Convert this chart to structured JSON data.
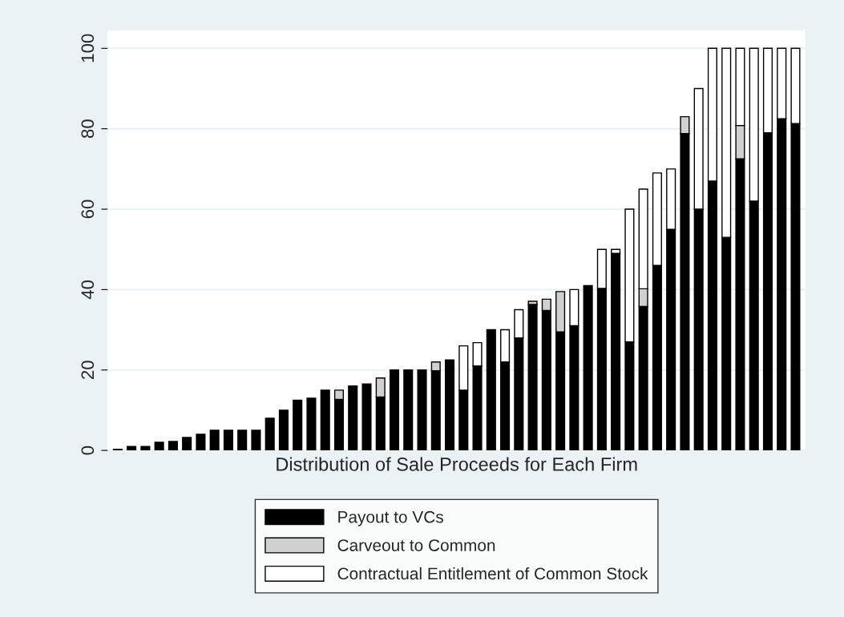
{
  "chart_data": {
    "type": "bar",
    "stacked": true,
    "xlabel": "Distribution of Sale Proceeds for Each Firm",
    "categories": [
      null,
      null,
      null,
      null,
      null,
      null,
      null,
      null,
      null,
      null,
      null,
      null,
      null,
      null,
      null,
      null,
      null,
      null,
      null,
      null,
      null,
      null,
      null,
      null,
      null,
      null,
      null,
      null,
      null,
      null,
      null,
      null,
      null,
      null,
      null,
      null,
      null,
      null,
      null,
      null,
      null,
      null,
      null,
      null,
      null,
      null,
      null,
      null,
      null,
      null
    ],
    "series": [
      {
        "name": "Payout to VCs",
        "color": "#000000",
        "values": [
          0.3,
          1,
          1,
          2,
          2.2,
          3.2,
          4,
          5,
          5,
          5,
          5,
          8,
          10,
          12.5,
          13,
          15,
          12.7,
          16,
          16.5,
          13.3,
          20,
          20,
          20,
          19.8,
          22.5,
          15,
          21,
          30,
          22,
          28,
          36.3,
          34.8,
          29.5,
          31,
          41,
          40.3,
          49,
          27,
          35.8,
          46,
          55,
          78.8,
          60,
          67,
          53,
          72.5,
          62,
          79,
          82.5,
          81.3
        ]
      },
      {
        "name": "Carveout to Common",
        "color": "#d0d0d0",
        "values": [
          null,
          null,
          null,
          null,
          null,
          null,
          null,
          null,
          null,
          null,
          null,
          null,
          null,
          null,
          null,
          null,
          2.3,
          null,
          null,
          4.7,
          null,
          null,
          null,
          2.2,
          null,
          null,
          null,
          null,
          null,
          null,
          0.8,
          2.8,
          10,
          null,
          null,
          null,
          null,
          null,
          4.4,
          null,
          null,
          4.2,
          null,
          null,
          null,
          8.3,
          null,
          null,
          null,
          null
        ]
      },
      {
        "name": "Contractual Entitlement of Common Stock",
        "color": "#ffffff",
        "values": [
          null,
          null,
          null,
          null,
          null,
          null,
          null,
          null,
          null,
          null,
          null,
          null,
          null,
          null,
          null,
          null,
          null,
          null,
          null,
          null,
          null,
          null,
          null,
          null,
          null,
          11,
          5.8,
          null,
          8,
          7,
          null,
          null,
          null,
          9,
          null,
          9.7,
          1,
          33,
          24.8,
          23,
          15,
          null,
          30,
          33,
          47,
          19.2,
          38,
          21,
          17.5,
          18.7
        ]
      }
    ],
    "ylim": [
      0,
      104.5
    ],
    "yticks": [
      0,
      20,
      40,
      60,
      80,
      100
    ],
    "grid": "y",
    "tick_labels": "y",
    "legend": "bottom"
  }
}
